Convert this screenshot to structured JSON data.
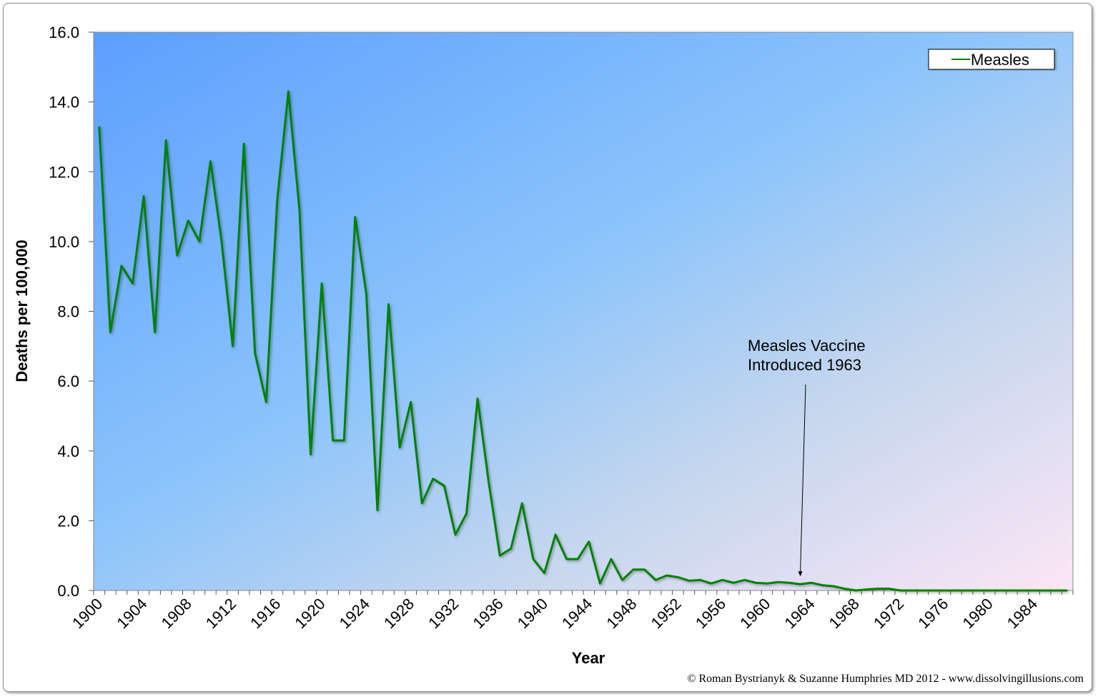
{
  "chart_data": {
    "type": "line",
    "title": "",
    "xlabel": "Year",
    "ylabel": "Deaths per 100,000",
    "ylim": [
      0,
      16
    ],
    "yticks": [
      "0.0",
      "2.0",
      "4.0",
      "6.0",
      "8.0",
      "10.0",
      "12.0",
      "14.0",
      "16.0"
    ],
    "xtick_labels": [
      "1900",
      "1904",
      "1908",
      "1912",
      "1916",
      "1920",
      "1924",
      "1928",
      "1932",
      "1936",
      "1940",
      "1944",
      "1948",
      "1952",
      "1956",
      "1960",
      "1964",
      "1968",
      "1972",
      "1976",
      "1980",
      "1984"
    ],
    "grid": false,
    "legend_position": "top-right",
    "x": [
      1900,
      1901,
      1902,
      1903,
      1904,
      1905,
      1906,
      1907,
      1908,
      1909,
      1910,
      1911,
      1912,
      1913,
      1914,
      1915,
      1916,
      1917,
      1918,
      1919,
      1920,
      1921,
      1922,
      1923,
      1924,
      1925,
      1926,
      1927,
      1928,
      1929,
      1930,
      1931,
      1932,
      1933,
      1934,
      1935,
      1936,
      1937,
      1938,
      1939,
      1940,
      1941,
      1942,
      1943,
      1944,
      1945,
      1946,
      1947,
      1948,
      1949,
      1950,
      1951,
      1952,
      1953,
      1954,
      1955,
      1956,
      1957,
      1958,
      1959,
      1960,
      1961,
      1962,
      1963,
      1964,
      1965,
      1966,
      1967,
      1968,
      1969,
      1970,
      1971,
      1972,
      1973,
      1974,
      1975,
      1976,
      1977,
      1978,
      1979,
      1980,
      1981,
      1982,
      1983,
      1984,
      1985,
      1986,
      1987
    ],
    "series": [
      {
        "name": "Measles",
        "color": "#008000",
        "values": [
          13.3,
          7.4,
          9.3,
          8.8,
          11.3,
          7.4,
          12.9,
          9.6,
          10.6,
          10.0,
          12.3,
          10.0,
          7.0,
          12.8,
          6.8,
          5.4,
          11.2,
          14.3,
          10.9,
          3.9,
          8.8,
          4.3,
          4.3,
          10.7,
          8.5,
          2.3,
          8.2,
          4.1,
          5.4,
          2.5,
          3.2,
          3.0,
          1.6,
          2.2,
          5.5,
          3.1,
          1.0,
          1.2,
          2.5,
          0.9,
          0.5,
          1.6,
          0.9,
          0.9,
          1.4,
          0.2,
          0.9,
          0.3,
          0.6,
          0.6,
          0.3,
          0.43,
          0.38,
          0.28,
          0.3,
          0.2,
          0.3,
          0.22,
          0.3,
          0.22,
          0.2,
          0.24,
          0.22,
          0.18,
          0.22,
          0.15,
          0.12,
          0.05,
          0.0,
          0.03,
          0.05,
          0.05,
          0.0,
          0.0,
          0.0,
          0.0,
          0.0,
          0.0,
          0.0,
          0.0,
          0.0,
          0.0,
          0.0,
          0.0,
          0.0,
          0.0,
          0.0,
          0.0
        ]
      }
    ],
    "annotations": [
      {
        "text_line1": "Measles Vaccine",
        "text_line2": "Introduced 1963",
        "x": 1963,
        "arrow_to_y": 0.2
      }
    ]
  },
  "credit": "© Roman Bystrianyk & Suzanne Humphries MD 2012 - www.dissolvingillusions.com"
}
